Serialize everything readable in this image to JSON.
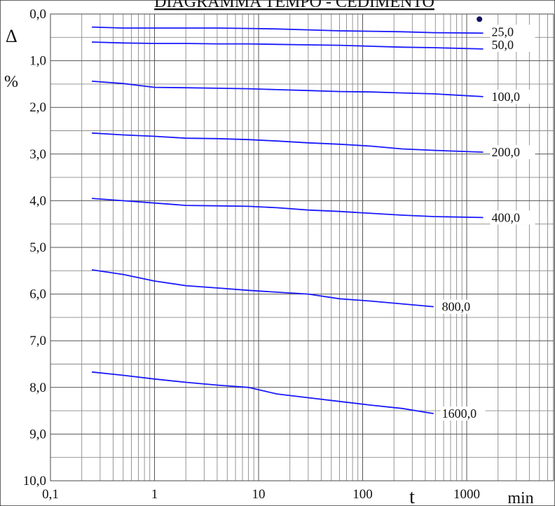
{
  "chart_data": {
    "type": "line",
    "title": "DIAGRAMMA TEMPO - CEDIMENTO",
    "ylabel_symbol": "Δ",
    "ylabel_unit": "%",
    "xlabel": "t",
    "xunit": "min",
    "x_scale": "log",
    "xlim": [
      0.1,
      10000
    ],
    "ylim": [
      0,
      10
    ],
    "y_inverted": true,
    "grid": true,
    "y_ticks": [
      "0,0",
      "1,0",
      "2,0",
      "3,0",
      "4,0",
      "5,0",
      "6,0",
      "7,0",
      "8,0",
      "9,0",
      "10,0"
    ],
    "x_ticks": [
      "0,1",
      "1",
      "10",
      "100",
      "1000"
    ],
    "series": [
      {
        "name": "25,0",
        "color": "#1a1aff",
        "x": [
          0.25,
          0.5,
          1,
          2,
          4,
          8,
          15,
          30,
          60,
          120,
          240,
          480,
          1440
        ],
        "y": [
          0.28,
          0.3,
          0.3,
          0.3,
          0.3,
          0.31,
          0.32,
          0.34,
          0.36,
          0.37,
          0.38,
          0.4,
          0.41
        ]
      },
      {
        "name": "50,0",
        "color": "#1a1aff",
        "x": [
          0.25,
          0.5,
          1,
          2,
          4,
          8,
          15,
          30,
          60,
          120,
          240,
          480,
          1440
        ],
        "y": [
          0.6,
          0.62,
          0.63,
          0.63,
          0.64,
          0.64,
          0.65,
          0.66,
          0.67,
          0.69,
          0.71,
          0.72,
          0.75
        ]
      },
      {
        "name": "100,0",
        "color": "#1a1aff",
        "x": [
          0.25,
          0.5,
          1,
          2,
          4,
          8,
          15,
          30,
          60,
          120,
          240,
          480,
          1440
        ],
        "y": [
          1.44,
          1.49,
          1.57,
          1.58,
          1.59,
          1.6,
          1.62,
          1.64,
          1.66,
          1.67,
          1.69,
          1.71,
          1.77
        ]
      },
      {
        "name": "200,0",
        "color": "#1a1aff",
        "x": [
          0.25,
          0.5,
          1,
          2,
          4,
          8,
          15,
          30,
          60,
          120,
          240,
          480,
          1440
        ],
        "y": [
          2.55,
          2.59,
          2.62,
          2.66,
          2.67,
          2.69,
          2.72,
          2.76,
          2.79,
          2.83,
          2.89,
          2.92,
          2.96
        ]
      },
      {
        "name": "400,0",
        "color": "#1a1aff",
        "x": [
          0.25,
          0.5,
          1,
          2,
          4,
          8,
          15,
          30,
          60,
          120,
          240,
          480,
          1440
        ],
        "y": [
          3.95,
          4.0,
          4.05,
          4.1,
          4.11,
          4.12,
          4.15,
          4.2,
          4.23,
          4.27,
          4.31,
          4.34,
          4.36
        ]
      },
      {
        "name": "800,0",
        "color": "#1a1aff",
        "x": [
          0.25,
          0.5,
          1,
          2,
          4,
          8,
          15,
          30,
          60,
          120,
          240,
          480
        ],
        "y": [
          5.48,
          5.58,
          5.72,
          5.82,
          5.87,
          5.92,
          5.96,
          6.0,
          6.1,
          6.15,
          6.21,
          6.27
        ]
      },
      {
        "name": "1600,0",
        "color": "#1a1aff",
        "x": [
          0.25,
          0.5,
          1,
          2,
          4,
          8,
          15,
          30,
          60,
          120,
          240,
          480
        ],
        "y": [
          7.67,
          7.74,
          7.82,
          7.89,
          7.95,
          8.0,
          8.14,
          8.22,
          8.3,
          8.38,
          8.45,
          8.56
        ]
      }
    ],
    "marker": {
      "x": 1500,
      "y": 0.26,
      "color": "#101060"
    }
  }
}
